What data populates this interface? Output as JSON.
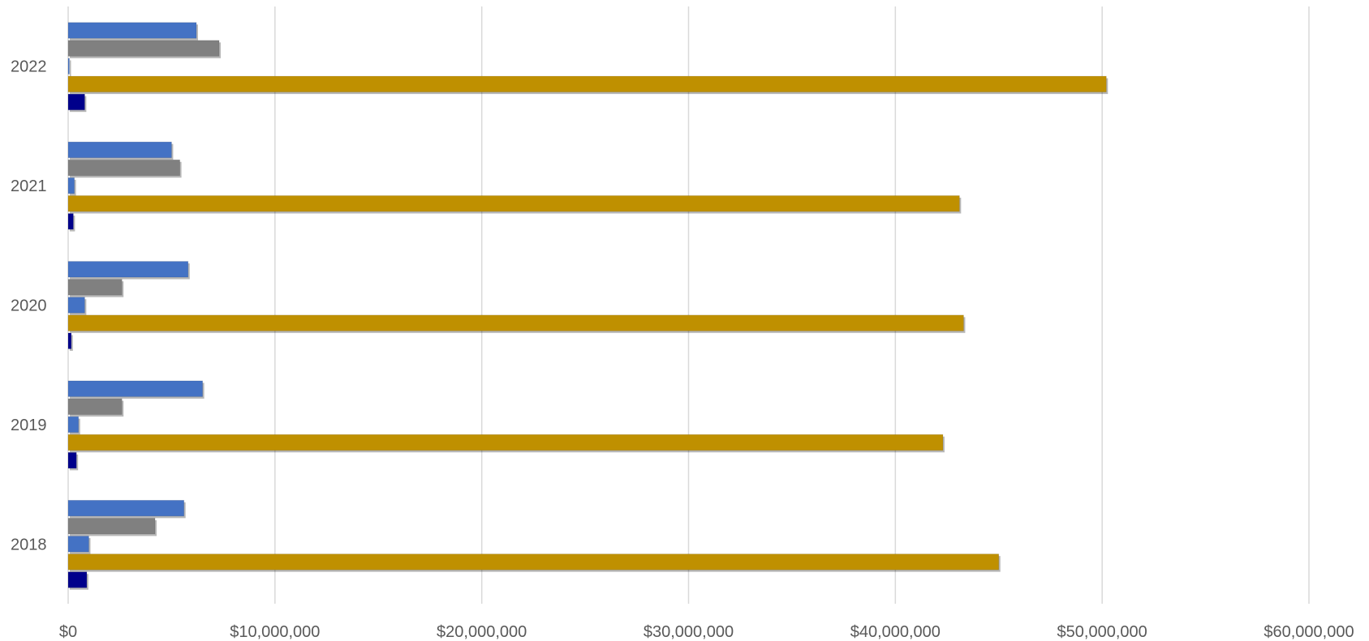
{
  "chart_data": {
    "type": "bar",
    "orientation": "horizontal",
    "categories": [
      "2018",
      "2019",
      "2020",
      "2021",
      "2022"
    ],
    "series": [
      {
        "color": "#4472c4",
        "values": [
          5600000,
          6500000,
          5800000,
          5000000,
          6200000
        ]
      },
      {
        "color": "#808080",
        "values": [
          4200000,
          2600000,
          2600000,
          5400000,
          7300000
        ]
      },
      {
        "color": "#4472c4",
        "values": [
          1000000,
          500000,
          800000,
          300000,
          50000
        ]
      },
      {
        "color": "#bf9000",
        "values": [
          45000000,
          42300000,
          43300000,
          43100000,
          50200000
        ]
      },
      {
        "color": "#00008b",
        "values": [
          900000,
          400000,
          150000,
          250000,
          800000
        ]
      }
    ],
    "xlim": [
      0,
      60000000
    ],
    "x_ticks": [
      "$0",
      "$10,000,000",
      "$20,000,000",
      "$30,000,000",
      "$40,000,000",
      "$50,000,000",
      "$60,000,000"
    ],
    "grid": "vertical",
    "legend": "none",
    "title": "",
    "xlabel": "",
    "ylabel": ""
  }
}
